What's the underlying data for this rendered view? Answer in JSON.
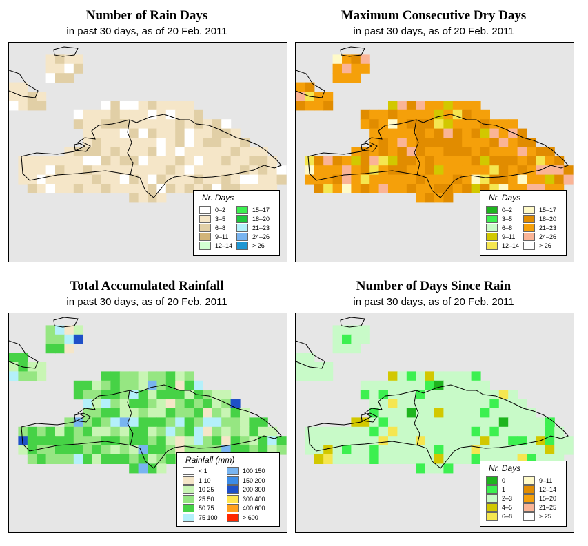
{
  "panels": [
    {
      "id": "rain-days",
      "title": "Number of Rain Days",
      "subtitle": "in past 30 days, as of  20 Feb. 2011",
      "legend": {
        "title": "Nr. Days",
        "items": [
          {
            "label": "0–2",
            "color": "#ffffff"
          },
          {
            "label": "3–5",
            "color": "#f5e6c8"
          },
          {
            "label": "6–8",
            "color": "#e1cfa6"
          },
          {
            "label": "9–11",
            "color": "#d2b478"
          },
          {
            "label": "12–14",
            "color": "#d2ffd2"
          },
          {
            "label": "15–17",
            "color": "#3cf050"
          },
          {
            "label": "18–20",
            "color": "#1ec83c"
          },
          {
            "label": "21–23",
            "color": "#b4f0fa"
          },
          {
            "label": "24–26",
            "color": "#78b4f0"
          },
          {
            "label": "> 26",
            "color": "#1e96d2"
          }
        ]
      }
    },
    {
      "id": "dry-days",
      "title": "Maximum Consecutive Dry Days",
      "subtitle": "in past 30 days, as of  20 Feb. 2011",
      "legend": {
        "title": "Nr. Days",
        "items": [
          {
            "label": "0–2",
            "color": "#1eb41e"
          },
          {
            "label": "3–5",
            "color": "#3cf050"
          },
          {
            "label": "6–8",
            "color": "#c8fac8"
          },
          {
            "label": "9–11",
            "color": "#d2c800"
          },
          {
            "label": "12–14",
            "color": "#f5e650"
          },
          {
            "label": "15–17",
            "color": "#fffac8"
          },
          {
            "label": "18–20",
            "color": "#e18c00"
          },
          {
            "label": "21–23",
            "color": "#f5a00a"
          },
          {
            "label": "24–26",
            "color": "#fab496"
          },
          {
            "label": "> 26",
            "color": "#ffffff"
          }
        ]
      }
    },
    {
      "id": "rainfall",
      "title": "Total Accumulated Rainfall",
      "subtitle": "in past 30 days, as of  20 Feb. 2011",
      "legend": {
        "title": "Rainfall (mm)",
        "items": [
          {
            "label": "< 1",
            "color": "#ffffff"
          },
          {
            "label": "1    10",
            "color": "#f5e6c8"
          },
          {
            "label": "10    25",
            "color": "#c8f5b4"
          },
          {
            "label": "25    50",
            "color": "#96e682"
          },
          {
            "label": "50    75",
            "color": "#46d246"
          },
          {
            "label": "75  100",
            "color": "#b4f0fa"
          },
          {
            "label": "100  150",
            "color": "#78b4f0"
          },
          {
            "label": "150  200",
            "color": "#3c8ce6"
          },
          {
            "label": "200  300",
            "color": "#1e50c8"
          },
          {
            "label": "300  400",
            "color": "#ffe650"
          },
          {
            "label": "400  600",
            "color": "#ffa01e"
          },
          {
            "label": "> 600",
            "color": "#ff2800"
          }
        ]
      }
    },
    {
      "id": "since-rain",
      "title": "Number of Days Since Rain",
      "subtitle": "in past 30 days, as of  20 Feb. 2011",
      "legend": {
        "title": "Nr. Days",
        "items": [
          {
            "label": "0",
            "color": "#1eb41e"
          },
          {
            "label": "1",
            "color": "#3cf050"
          },
          {
            "label": "2–3",
            "color": "#c8fac8"
          },
          {
            "label": "4–5",
            "color": "#d2c800"
          },
          {
            "label": "6–8",
            "color": "#f5e650"
          },
          {
            "label": "9–11",
            "color": "#fffac8"
          },
          {
            "label": "12–14",
            "color": "#e18c00"
          },
          {
            "label": "15–20",
            "color": "#f5a00a"
          },
          {
            "label": "21–25",
            "color": "#fab496"
          },
          {
            "label": "> 25",
            "color": "#ffffff"
          }
        ]
      }
    }
  ]
}
